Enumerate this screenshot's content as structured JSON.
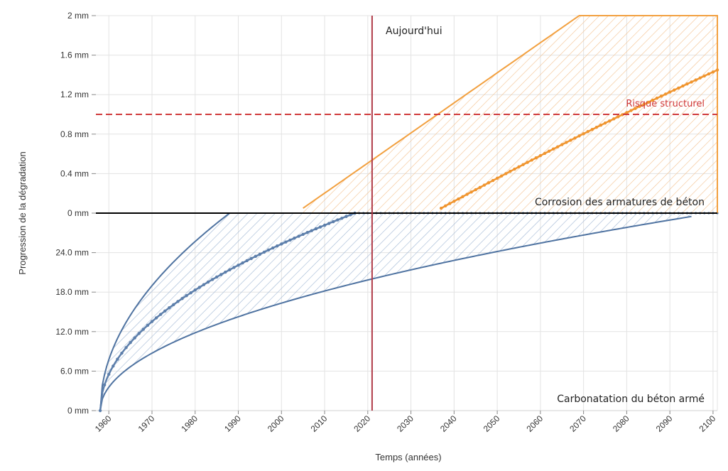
{
  "chart_data": {
    "type": "line",
    "xlabel": "Temps (années)",
    "ylabel": "Progression de la dégradation",
    "x_range": [
      1957,
      2101
    ],
    "x_ticks": [
      1960,
      1970,
      1980,
      1990,
      2000,
      2010,
      2020,
      2030,
      2040,
      2050,
      2060,
      2070,
      2080,
      2090,
      2100
    ],
    "upper_axis": {
      "unit": "mm",
      "range": [
        0,
        2
      ],
      "ticks": [
        0,
        0.4,
        0.8,
        1.2,
        1.6,
        2
      ],
      "tick_labels": [
        "0 mm",
        "0.4 mm",
        "0.8 mm",
        "1.2 mm",
        "1.6 mm",
        "2 mm"
      ]
    },
    "lower_axis": {
      "unit": "mm",
      "range": [
        0,
        30
      ],
      "ticks": [
        0,
        6,
        12,
        18,
        24
      ],
      "tick_labels": [
        "0 mm",
        "6.0 mm",
        "12.0 mm",
        "18.0 mm",
        "24.0 mm"
      ],
      "zero_at_top_label": "0 mm",
      "scale": "sqrt-time carbonation depth (0 at bottom, 30 mm at the 0 mm line)"
    },
    "grid": true,
    "annotations": {
      "today_label": "Aujourd'hui",
      "today_year": 2021,
      "risk_label": "Risque structurel",
      "risk_level_mm": 1.0,
      "corrosion_label": "Corrosion des armatures de béton",
      "carbonation_label": "Carbonatation du béton armé"
    },
    "carbonation": {
      "start_year": 1958,
      "band_upper_end_year": 1988,
      "median_end_year": 2017,
      "band_lower_end_year": 2095,
      "band_lower_at_2021_mm": 20.0
    },
    "corrosion": {
      "band_start_year": 2005,
      "band_start_value_mm": 0.05,
      "band_upper_reaches_2mm_year": 2069,
      "median_start_year": 2037,
      "median_start_value_mm": 0.05,
      "median_end_year": 2101,
      "median_end_value_mm": 1.45
    },
    "colors": {
      "carbonation": "#4f73a1",
      "carbonation_median": "#5d7fab",
      "corrosion": "#f2a03f",
      "corrosion_median": "#f0952f",
      "today_line": "#b03a48",
      "risk_line": "#d0393b",
      "zero_line": "#000000",
      "grid": "#e3e3e3"
    }
  }
}
